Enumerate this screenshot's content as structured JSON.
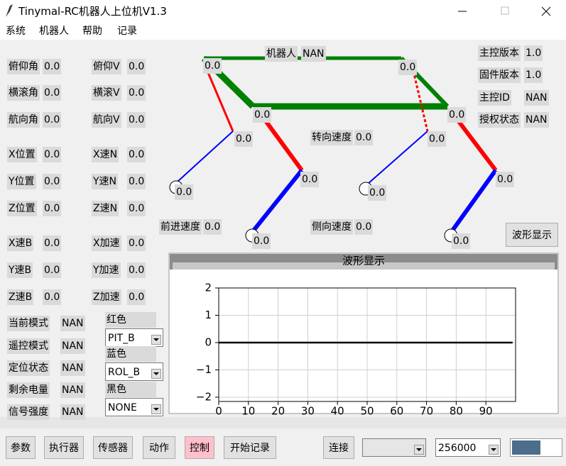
{
  "window": {
    "title": "Tinymal-RC机器人上位机V1.3"
  },
  "menu": [
    "系统",
    "机器人",
    "帮助",
    "记录"
  ],
  "attitude": {
    "col1": [
      [
        "俯仰角",
        "0.0"
      ],
      [
        "横滚角",
        "0.0"
      ],
      [
        "航向角",
        "0.0"
      ],
      [
        "X位置",
        "0.0"
      ],
      [
        "Y位置",
        "0.0"
      ],
      [
        "Z位置",
        "0.0"
      ],
      [
        "X速B",
        "0.0"
      ],
      [
        "Y速B",
        "0.0"
      ],
      [
        "Z速B",
        "0.0"
      ]
    ],
    "col2": [
      [
        "俯仰V",
        "0.0"
      ],
      [
        "横滚V",
        "0.0"
      ],
      [
        "航向V",
        "0.0"
      ],
      [
        "X速N",
        "0.0"
      ],
      [
        "Y速N",
        "0.0"
      ],
      [
        "Z速N",
        "0.0"
      ],
      [
        "X加速",
        "0.0"
      ],
      [
        "Y加速",
        "0.0"
      ],
      [
        "Z加速",
        "0.0"
      ]
    ]
  },
  "status": [
    [
      "当前模式",
      "NAN"
    ],
    [
      "遥控模式",
      "NAN"
    ],
    [
      "定位状态",
      "NAN"
    ],
    [
      "剩余电量",
      "NAN"
    ],
    [
      "信号强度",
      "NAN"
    ]
  ],
  "channels": [
    [
      "红色",
      "PIT_B"
    ],
    [
      "蓝色",
      "ROL_B"
    ],
    [
      "黑色",
      "NONE"
    ]
  ],
  "info": [
    [
      "主控版本",
      "1.0"
    ],
    [
      "固件版本",
      "1.0"
    ],
    [
      "主控ID",
      "NAN"
    ],
    [
      "授权状态",
      "NAN"
    ]
  ],
  "robot": {
    "label": "机器人",
    "value": "NAN",
    "joints": [
      "0.0",
      "0.0",
      "0.0",
      "0.0",
      "0.0",
      "0.0",
      "0.0",
      "0.0",
      "0.0",
      "0.0",
      "0.0",
      "0.0"
    ],
    "speeds": [
      [
        "转向速度",
        "0.0"
      ],
      [
        "前进速度",
        "0.0"
      ],
      [
        "侧向速度",
        "0.0"
      ]
    ]
  },
  "wave_button": "波形显示",
  "waveform": {
    "type": "line",
    "title": "波形显示",
    "xlim": [
      0,
      100
    ],
    "ylim": [
      -2,
      2
    ],
    "xticks": [
      0,
      10,
      20,
      30,
      40,
      50,
      60,
      70,
      80,
      90
    ],
    "yticks": [
      {
        "value": -2,
        "label": "−2"
      },
      {
        "value": -1,
        "label": "−1"
      },
      0,
      1,
      2
    ],
    "grid": true,
    "series": [
      {
        "color": "#000000",
        "x": [
          0,
          99
        ],
        "values": [
          0,
          0
        ]
      }
    ]
  },
  "toolbar": {
    "buttons": [
      "参数",
      "执行器",
      "传感器",
      "动作",
      "控制",
      "开始记录",
      "连接"
    ],
    "port": "",
    "baud": "256000"
  }
}
